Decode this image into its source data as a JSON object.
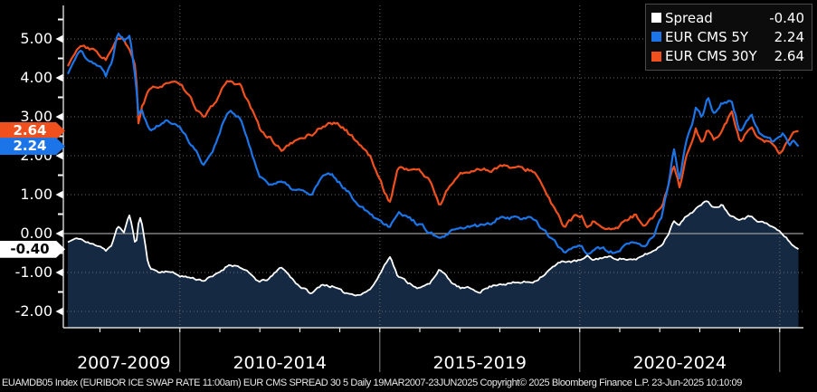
{
  "footer": {
    "text": "EUAMDB05 Index (EURIBOR ICE SWAP RATE 11:00am) EUR CMS SPREAD 30 5  Daily 19MAR2007-23JUN2025 Copyright© 2025 Bloomberg Finance L.P. 23-Jun-2025 10:10:09"
  },
  "chart_data": {
    "type": "line",
    "title": "EUR CMS SPREAD 30 5",
    "x_unit": "year",
    "x": [
      2007.2,
      2007.35,
      2007.5,
      2007.65,
      2007.8,
      2008.0,
      2008.15,
      2008.3,
      2008.45,
      2008.6,
      2008.75,
      2008.9,
      2008.97,
      2009.03,
      2009.2,
      2009.3,
      2009.5,
      2009.7,
      2009.9,
      2010.1,
      2010.35,
      2010.6,
      2010.85,
      2011.1,
      2011.25,
      2011.5,
      2011.75,
      2012.0,
      2012.25,
      2012.55,
      2012.8,
      2013.0,
      2013.3,
      2013.55,
      2013.8,
      2014.05,
      2014.3,
      2014.55,
      2014.8,
      2015.05,
      2015.25,
      2015.45,
      2015.7,
      2016.0,
      2016.25,
      2016.5,
      2016.75,
      2017.0,
      2017.25,
      2017.5,
      2017.75,
      2018.0,
      2018.25,
      2018.5,
      2018.85,
      2019.1,
      2019.35,
      2019.6,
      2019.85,
      2020.05,
      2020.2,
      2020.35,
      2020.6,
      2020.95,
      2021.2,
      2021.4,
      2021.6,
      2021.85,
      2022.05,
      2022.2,
      2022.35,
      2022.5,
      2022.65,
      2022.8,
      2022.9,
      2023.05,
      2023.2,
      2023.35,
      2023.55,
      2023.8,
      2024.0,
      2024.15,
      2024.3,
      2024.45,
      2024.6,
      2024.8,
      2025.0,
      2025.1,
      2025.25,
      2025.35,
      2025.47
    ],
    "series": [
      {
        "name": "Spread",
        "color": "#ffffff",
        "fill": "#152a42",
        "jitter": 0.06,
        "last_value": -0.4,
        "last_value_label": "-0.40",
        "values": [
          -0.22,
          -0.15,
          -0.12,
          -0.22,
          -0.28,
          -0.3,
          -0.42,
          -0.3,
          0.18,
          0.05,
          0.5,
          -0.35,
          0.3,
          0.42,
          -0.75,
          -0.9,
          -1.0,
          -0.95,
          -1.05,
          -1.1,
          -1.15,
          -1.2,
          -1.1,
          -0.9,
          -0.78,
          -0.85,
          -1.05,
          -1.25,
          -1.15,
          -0.85,
          -1.15,
          -1.35,
          -1.55,
          -1.3,
          -1.35,
          -1.5,
          -1.55,
          -1.55,
          -1.4,
          -0.95,
          -0.55,
          -1.1,
          -1.25,
          -1.4,
          -1.3,
          -0.88,
          -1.23,
          -1.4,
          -1.42,
          -1.48,
          -1.37,
          -1.28,
          -1.28,
          -1.26,
          -1.23,
          -1.05,
          -0.85,
          -0.7,
          -0.72,
          -0.68,
          -0.6,
          -0.68,
          -0.6,
          -0.63,
          -0.66,
          -0.7,
          -0.55,
          -0.45,
          -0.28,
          -0.05,
          0.35,
          0.25,
          0.42,
          0.55,
          0.65,
          0.72,
          0.86,
          0.68,
          0.75,
          0.45,
          0.4,
          0.42,
          0.45,
          0.35,
          0.28,
          0.18,
          0.05,
          -0.05,
          -0.22,
          -0.32,
          -0.4
        ]
      },
      {
        "name": "EUR CMS 5Y",
        "color": "#1b74e8",
        "jitter": 0.09,
        "last_value": 2.24,
        "last_value_label": "2.24",
        "values": [
          4.1,
          4.45,
          4.7,
          4.55,
          4.45,
          4.3,
          4.05,
          4.45,
          5.2,
          4.98,
          5.15,
          3.95,
          3.05,
          3.3,
          2.75,
          2.7,
          2.8,
          2.9,
          2.8,
          2.6,
          2.2,
          1.78,
          2.2,
          2.9,
          3.15,
          2.95,
          2.25,
          1.45,
          1.3,
          1.3,
          1.15,
          1.1,
          1.0,
          1.45,
          1.5,
          1.25,
          0.95,
          0.7,
          0.5,
          0.3,
          0.2,
          0.58,
          0.42,
          0.22,
          0.05,
          -0.18,
          0.02,
          0.1,
          0.18,
          0.2,
          0.25,
          0.45,
          0.42,
          0.4,
          0.4,
          0.1,
          -0.2,
          -0.5,
          -0.32,
          -0.28,
          -0.55,
          -0.38,
          -0.42,
          -0.5,
          -0.28,
          -0.25,
          -0.33,
          -0.05,
          0.42,
          1.15,
          2.2,
          1.35,
          2.3,
          2.75,
          3.25,
          3.0,
          3.52,
          3.05,
          3.35,
          3.45,
          2.6,
          2.85,
          3.0,
          2.65,
          2.42,
          2.35,
          2.5,
          2.58,
          2.3,
          2.4,
          2.24
        ]
      },
      {
        "name": "EUR CMS 30Y",
        "color": "#f0501e",
        "jitter": 0.09,
        "last_value": 2.64,
        "last_value_label": "2.64",
        "values": [
          4.3,
          4.6,
          4.82,
          4.75,
          4.72,
          4.6,
          4.48,
          4.72,
          5.0,
          4.95,
          4.65,
          4.3,
          2.75,
          3.2,
          3.6,
          3.7,
          3.8,
          3.9,
          3.85,
          3.7,
          3.32,
          2.95,
          3.3,
          3.8,
          3.95,
          3.8,
          3.28,
          2.7,
          2.45,
          2.15,
          2.3,
          2.45,
          2.55,
          2.75,
          2.85,
          2.75,
          2.5,
          2.25,
          1.9,
          1.25,
          0.78,
          1.7,
          1.66,
          1.62,
          1.35,
          0.72,
          1.25,
          1.5,
          1.6,
          1.68,
          1.62,
          1.74,
          1.7,
          1.66,
          1.63,
          1.15,
          0.65,
          0.18,
          0.42,
          0.42,
          0.08,
          0.3,
          0.18,
          0.1,
          0.38,
          0.48,
          0.25,
          0.42,
          0.72,
          1.18,
          1.82,
          1.15,
          1.95,
          2.32,
          2.72,
          2.28,
          2.66,
          2.42,
          2.65,
          3.12,
          2.35,
          2.55,
          2.65,
          2.42,
          2.38,
          2.3,
          2.05,
          2.2,
          2.45,
          2.6,
          2.64
        ]
      }
    ],
    "y_axis": {
      "range": [
        -2.37,
        5.86
      ],
      "minor_step": 0.5,
      "zero_line": true,
      "ticks": [
        {
          "value": 5,
          "label": "5.00"
        },
        {
          "value": 4,
          "label": "4.00"
        },
        {
          "value": 3,
          "label": "3.00"
        },
        {
          "value": 2,
          "label": "2.00"
        },
        {
          "value": 1,
          "label": "1.00"
        },
        {
          "value": 0,
          "label": "0.00"
        },
        {
          "value": -1,
          "label": "-1.00"
        },
        {
          "value": -2,
          "label": "-2.00"
        }
      ]
    },
    "x_axis": {
      "range": [
        2007.2,
        2025.55
      ],
      "sections": [
        {
          "label": "2007-2009",
          "from": 2007.2,
          "to": 2010
        },
        {
          "label": "2010-2014",
          "from": 2010,
          "to": 2015
        },
        {
          "label": "2015-2019",
          "from": 2015,
          "to": 2020
        },
        {
          "label": "2020-2024",
          "from": 2020,
          "to": 2025
        }
      ]
    },
    "colors": {
      "background": "#000000",
      "grid": "#6a6a6a",
      "zero_line": "#9a9a9a",
      "axis": "#d9d9d9",
      "section_divider": "#8a8a8a"
    },
    "legend_position": "top-right",
    "grid": "dotted"
  }
}
